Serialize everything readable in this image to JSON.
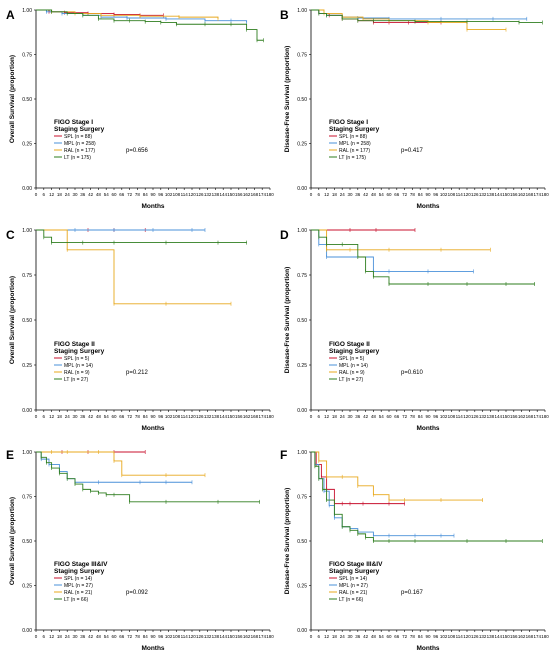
{
  "colors": {
    "SPL": "#c8102e",
    "MPL": "#4a90d9",
    "RAL": "#e8a81c",
    "LT": "#2e7d1e",
    "axis": "#000000",
    "text": "#000000"
  },
  "chart_data": [
    {
      "panel_letter": "A",
      "type": "line",
      "ylabel": "Overall Survival (proportion)",
      "xlabel": "Months",
      "xlim": [
        0,
        180
      ],
      "ylim": [
        0,
        1
      ],
      "xticks": [
        "0",
        "6",
        "12",
        "18",
        "24",
        "30",
        "36",
        "42",
        "48",
        "54",
        "60",
        "66",
        "72",
        "78",
        "84",
        "90",
        "96",
        "102",
        "108",
        "114",
        "120",
        "126",
        "132",
        "138",
        "144",
        "150",
        "156",
        "162",
        "168",
        "174",
        "180"
      ],
      "yticks": [
        "0.00",
        "0.25",
        "0.50",
        "0.75",
        "1.00"
      ],
      "legend_title": [
        "FIGO Stage I",
        "Staging Surgery"
      ],
      "pvalue": "p=0.656",
      "series": [
        {
          "key": "SPL",
          "name": "SPL (n = 88)",
          "x": [
            0,
            10,
            22,
            40,
            60,
            80,
            98
          ],
          "y": [
            1,
            0.99,
            0.985,
            0.98,
            0.975,
            0.97,
            0.97
          ]
        },
        {
          "key": "MPL",
          "name": "MPL (n = 258)",
          "x": [
            0,
            8,
            20,
            36,
            50,
            70,
            100,
            130,
            150,
            162
          ],
          "y": [
            1,
            0.99,
            0.98,
            0.97,
            0.96,
            0.955,
            0.95,
            0.94,
            0.94,
            0.93
          ]
        },
        {
          "key": "RAL",
          "name": "RAL (n = 177)",
          "x": [
            0,
            12,
            30,
            50,
            80,
            110,
            140
          ],
          "y": [
            1,
            0.99,
            0.98,
            0.97,
            0.965,
            0.96,
            0.95
          ]
        },
        {
          "key": "LT",
          "name": "LT (n = 175)",
          "x": [
            0,
            12,
            24,
            36,
            48,
            60,
            72,
            84,
            96,
            108,
            130,
            150,
            162,
            170,
            175
          ],
          "y": [
            1,
            0.99,
            0.98,
            0.97,
            0.95,
            0.94,
            0.94,
            0.935,
            0.93,
            0.92,
            0.92,
            0.92,
            0.89,
            0.83,
            0.83
          ]
        }
      ]
    },
    {
      "panel_letter": "B",
      "type": "line",
      "ylabel": "Disease-Free Survival (proportion)",
      "xlabel": "Months",
      "xlim": [
        0,
        180
      ],
      "ylim": [
        0,
        1
      ],
      "xticks": [
        "0",
        "6",
        "12",
        "18",
        "24",
        "30",
        "36",
        "42",
        "48",
        "54",
        "60",
        "66",
        "72",
        "78",
        "84",
        "90",
        "96",
        "102",
        "108",
        "114",
        "120",
        "126",
        "132",
        "138",
        "144",
        "150",
        "156",
        "162",
        "168",
        "174",
        "180"
      ],
      "yticks": [
        "0.00",
        "0.25",
        "0.50",
        "0.75",
        "1.00"
      ],
      "legend_title": [
        "FIGO Stage I",
        "Staging Surgery"
      ],
      "pvalue": "p=0.417",
      "series": [
        {
          "key": "SPL",
          "name": "SPL (n = 88)",
          "x": [
            0,
            6,
            14,
            24,
            36,
            48,
            60,
            75,
            100
          ],
          "y": [
            1,
            0.98,
            0.97,
            0.95,
            0.94,
            0.93,
            0.93,
            0.93,
            0.93
          ]
        },
        {
          "key": "MPL",
          "name": "MPL (n = 258)",
          "x": [
            0,
            6,
            12,
            24,
            36,
            60,
            100,
            140,
            166
          ],
          "y": [
            1,
            0.98,
            0.97,
            0.96,
            0.955,
            0.95,
            0.95,
            0.95,
            0.95
          ]
        },
        {
          "key": "RAL",
          "name": "RAL (n = 177)",
          "x": [
            0,
            10,
            24,
            40,
            60,
            90,
            120,
            150
          ],
          "y": [
            1,
            0.98,
            0.96,
            0.95,
            0.94,
            0.93,
            0.89,
            0.89
          ]
        },
        {
          "key": "LT",
          "name": "LT (n = 175)",
          "x": [
            0,
            6,
            12,
            24,
            36,
            48,
            80,
            120,
            160,
            178
          ],
          "y": [
            1,
            0.98,
            0.97,
            0.95,
            0.94,
            0.94,
            0.935,
            0.935,
            0.93,
            0.93
          ]
        }
      ]
    },
    {
      "panel_letter": "C",
      "type": "line",
      "ylabel": "Overall Survival (proportion)",
      "xlabel": "Months",
      "xlim": [
        0,
        180
      ],
      "ylim": [
        0,
        1
      ],
      "xticks": [
        "0",
        "6",
        "12",
        "18",
        "24",
        "30",
        "36",
        "42",
        "48",
        "54",
        "60",
        "66",
        "72",
        "78",
        "84",
        "90",
        "96",
        "102",
        "108",
        "114",
        "120",
        "126",
        "132",
        "138",
        "144",
        "150",
        "156",
        "162",
        "168",
        "174",
        "180"
      ],
      "yticks": [
        "0.00",
        "0.25",
        "0.50",
        "0.75",
        "1.00"
      ],
      "legend_title": [
        "FIGO Stage II",
        "Staging Surgery"
      ],
      "pvalue": "p=0.212",
      "series": [
        {
          "key": "SPL",
          "name": "SPL (n = 5)",
          "x": [
            0,
            40,
            60,
            84
          ],
          "y": [
            1,
            1,
            1,
            1
          ]
        },
        {
          "key": "MPL",
          "name": "MPL (n = 14)",
          "x": [
            0,
            30,
            60,
            90,
            120,
            130
          ],
          "y": [
            1,
            1,
            1,
            1,
            1,
            1
          ]
        },
        {
          "key": "RAL",
          "name": "RAL (n = 9)",
          "x": [
            0,
            24,
            60,
            100,
            150
          ],
          "y": [
            1,
            0.89,
            0.59,
            0.59,
            0.59
          ]
        },
        {
          "key": "LT",
          "name": "LT (n = 27)",
          "x": [
            0,
            6,
            12,
            36,
            60,
            100,
            140,
            162
          ],
          "y": [
            1,
            0.96,
            0.93,
            0.93,
            0.93,
            0.93,
            0.93,
            0.93
          ]
        }
      ]
    },
    {
      "panel_letter": "D",
      "type": "line",
      "ylabel": "Disease-Free Survival (proportion)",
      "xlabel": "Months",
      "xlim": [
        0,
        180
      ],
      "ylim": [
        0,
        1
      ],
      "xticks": [
        "0",
        "6",
        "12",
        "18",
        "24",
        "30",
        "36",
        "42",
        "48",
        "54",
        "60",
        "66",
        "72",
        "78",
        "84",
        "90",
        "96",
        "102",
        "108",
        "114",
        "120",
        "126",
        "132",
        "138",
        "144",
        "150",
        "156",
        "162",
        "168",
        "174",
        "180"
      ],
      "yticks": [
        "0.00",
        "0.25",
        "0.50",
        "0.75",
        "1.00"
      ],
      "legend_title": [
        "FIGO Stage II",
        "Staging Surgery"
      ],
      "pvalue": "p=0.610",
      "series": [
        {
          "key": "SPL",
          "name": "SPL (n = 5)",
          "x": [
            0,
            30,
            50,
            80
          ],
          "y": [
            1,
            1,
            1,
            1
          ]
        },
        {
          "key": "MPL",
          "name": "MPL (n = 14)",
          "x": [
            0,
            6,
            12,
            36,
            48,
            60,
            90,
            125
          ],
          "y": [
            1,
            0.92,
            0.85,
            0.85,
            0.77,
            0.77,
            0.77,
            0.77
          ]
        },
        {
          "key": "RAL",
          "name": "RAL (n = 9)",
          "x": [
            0,
            12,
            30,
            60,
            100,
            138
          ],
          "y": [
            1,
            0.89,
            0.89,
            0.89,
            0.89,
            0.89
          ]
        },
        {
          "key": "LT",
          "name": "LT (n = 27)",
          "x": [
            0,
            6,
            12,
            24,
            36,
            42,
            48,
            60,
            90,
            120,
            150,
            172
          ],
          "y": [
            1,
            0.96,
            0.92,
            0.92,
            0.85,
            0.77,
            0.74,
            0.7,
            0.7,
            0.7,
            0.7,
            0.7
          ]
        }
      ]
    },
    {
      "panel_letter": "E",
      "type": "line",
      "ylabel": "Overall Survival (proportion)",
      "xlabel": "Months",
      "xlim": [
        0,
        180
      ],
      "ylim": [
        0,
        1
      ],
      "xticks": [
        "0",
        "6",
        "12",
        "18",
        "24",
        "30",
        "36",
        "42",
        "48",
        "54",
        "60",
        "66",
        "72",
        "78",
        "84",
        "90",
        "96",
        "102",
        "108",
        "114",
        "120",
        "126",
        "132",
        "138",
        "144",
        "150",
        "156",
        "162",
        "168",
        "174",
        "180"
      ],
      "yticks": [
        "0.00",
        "0.25",
        "0.50",
        "0.75",
        "1.00"
      ],
      "legend_title": [
        "FIGO Stage III&IV",
        "Staging Surgery"
      ],
      "pvalue": "p=0.092",
      "series": [
        {
          "key": "SPL",
          "name": "SPL (n = 14)",
          "x": [
            0,
            20,
            40,
            60,
            84
          ],
          "y": [
            1,
            1,
            1,
            1,
            1
          ]
        },
        {
          "key": "MPL",
          "name": "MPL (n = 27)",
          "x": [
            0,
            4,
            10,
            18,
            24,
            30,
            48,
            80,
            100,
            120
          ],
          "y": [
            1,
            0.96,
            0.93,
            0.89,
            0.85,
            0.83,
            0.83,
            0.83,
            0.83,
            0.83
          ]
        },
        {
          "key": "RAL",
          "name": "RAL (n = 21)",
          "x": [
            0,
            12,
            24,
            48,
            60,
            66,
            100,
            130
          ],
          "y": [
            1,
            1,
            1,
            1,
            0.95,
            0.87,
            0.87,
            0.87
          ]
        },
        {
          "key": "LT",
          "name": "LT (n = 66)",
          "x": [
            0,
            4,
            8,
            12,
            18,
            24,
            30,
            36,
            42,
            48,
            54,
            60,
            72,
            100,
            140,
            172
          ],
          "y": [
            1,
            0.97,
            0.94,
            0.91,
            0.88,
            0.85,
            0.82,
            0.79,
            0.78,
            0.77,
            0.76,
            0.76,
            0.72,
            0.72,
            0.72,
            0.72
          ]
        }
      ]
    },
    {
      "panel_letter": "F",
      "type": "line",
      "ylabel": "Disease-Free Survival (proportion)",
      "xlabel": "Months",
      "xlim": [
        0,
        180
      ],
      "ylim": [
        0,
        1
      ],
      "xticks": [
        "0",
        "6",
        "12",
        "18",
        "24",
        "30",
        "36",
        "42",
        "48",
        "54",
        "60",
        "66",
        "72",
        "78",
        "84",
        "90",
        "96",
        "102",
        "108",
        "114",
        "120",
        "126",
        "132",
        "138",
        "144",
        "150",
        "156",
        "162",
        "168",
        "174",
        "180"
      ],
      "yticks": [
        "0.00",
        "0.25",
        "0.50",
        "0.75",
        "1.00"
      ],
      "legend_title": [
        "FIGO Stage III&IV",
        "Staging Surgery"
      ],
      "pvalue": "p=0.167",
      "series": [
        {
          "key": "SPL",
          "name": "SPL (n = 14)",
          "x": [
            0,
            4,
            8,
            12,
            18,
            24,
            30,
            40,
            60,
            72
          ],
          "y": [
            1,
            0.93,
            0.86,
            0.79,
            0.71,
            0.71,
            0.71,
            0.71,
            0.71,
            0.71
          ]
        },
        {
          "key": "MPL",
          "name": "MPL (n = 27)",
          "x": [
            0,
            3,
            6,
            10,
            14,
            18,
            24,
            30,
            36,
            48,
            60,
            80,
            100,
            110
          ],
          "y": [
            1,
            0.93,
            0.85,
            0.78,
            0.7,
            0.63,
            0.58,
            0.57,
            0.55,
            0.53,
            0.53,
            0.53,
            0.53,
            0.53
          ]
        },
        {
          "key": "RAL",
          "name": "RAL (n = 21)",
          "x": [
            0,
            6,
            12,
            24,
            36,
            48,
            60,
            72,
            100,
            132
          ],
          "y": [
            1,
            0.95,
            0.86,
            0.86,
            0.81,
            0.76,
            0.73,
            0.73,
            0.73,
            0.73
          ]
        },
        {
          "key": "LT",
          "name": "LT (n = 66)",
          "x": [
            0,
            3,
            6,
            9,
            12,
            18,
            24,
            30,
            36,
            42,
            48,
            60,
            80,
            120,
            150,
            178
          ],
          "y": [
            1,
            0.92,
            0.85,
            0.79,
            0.73,
            0.65,
            0.58,
            0.56,
            0.54,
            0.52,
            0.5,
            0.5,
            0.5,
            0.5,
            0.5,
            0.5
          ]
        }
      ]
    }
  ]
}
